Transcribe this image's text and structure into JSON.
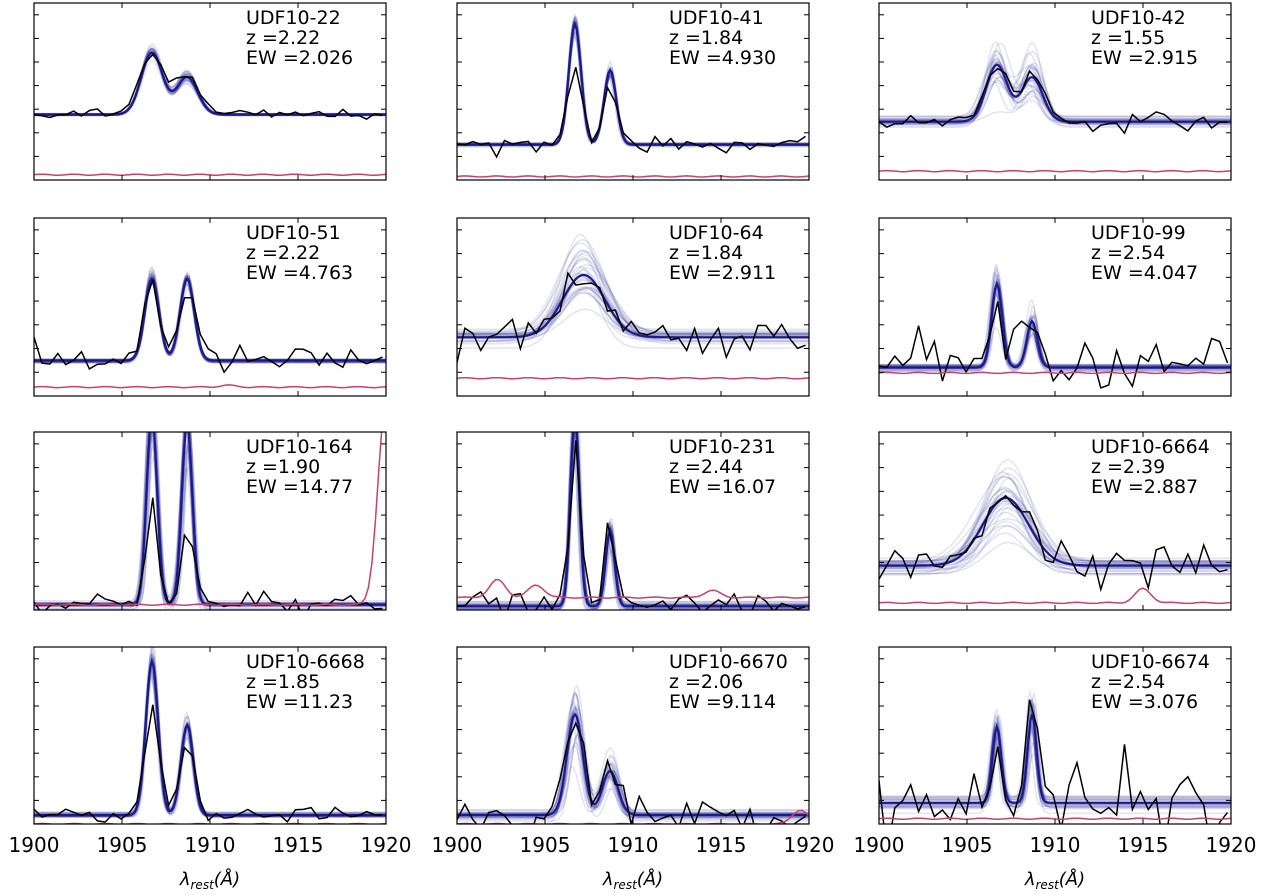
{
  "chart_data": {
    "type": "line",
    "layout": "4x3 grid of spectral panels",
    "x_axis": {
      "range": [
        1900,
        1920
      ],
      "ticks": [
        1900,
        1905,
        1910,
        1915,
        1920
      ],
      "tick_labels": [
        "1900",
        "1905",
        "1910",
        "1915",
        "1920"
      ],
      "label_main": "λ",
      "label_sub": "rest",
      "label_suffix": "(Å)"
    },
    "y_axis": {
      "tick_labels_shown": false
    },
    "colors": {
      "model": "#1a1a8c",
      "data": "#000000",
      "noise": "#c8406e"
    },
    "panels": [
      {
        "name": "UDF10-22",
        "z": "z =2.22",
        "ew": "EW =2.026",
        "type": "broad-doublet",
        "baseline": 0.37,
        "peak1": 0.72,
        "peak2": 0.58,
        "width": 0.6,
        "noise_level": 0.03,
        "data_noise": 0.015,
        "model_scatter": 0.01,
        "noise_bumps": []
      },
      {
        "name": "UDF10-41",
        "z": "z =1.84",
        "ew": "EW =4.930",
        "type": "narrow-doublet",
        "baseline": 0.2,
        "peak1": 0.88,
        "peak2": 0.62,
        "data_peak1": 0.65,
        "data_peak2": 0.55,
        "width": 0.35,
        "noise_level": 0.02,
        "data_noise": 0.02,
        "model_scatter": 0.015,
        "noise_bumps": []
      },
      {
        "name": "UDF10-42",
        "z": "z =1.55",
        "ew": "EW =2.915",
        "type": "wide-doublet",
        "baseline": 0.33,
        "peak1": 0.65,
        "peak2": 0.58,
        "width": 0.6,
        "noise_level": 0.05,
        "data_noise": 0.025,
        "model_scatter": 0.04,
        "noise_bumps": []
      },
      {
        "name": "UDF10-51",
        "z": "z =2.22",
        "ew": "EW =4.763",
        "type": "narrow-doublet",
        "baseline": 0.2,
        "peak1": 0.66,
        "peak2": 0.66,
        "data_peak1": 0.65,
        "data_peak2": 0.6,
        "width": 0.4,
        "noise_level": 0.05,
        "data_noise": 0.04,
        "model_scatter": 0.015,
        "noise_bumps": [
          [
            1911,
            0.01
          ]
        ]
      },
      {
        "name": "UDF10-64",
        "z": "z =1.84",
        "ew": "EW =2.911",
        "type": "broad-single",
        "baseline": 0.33,
        "peak1": 0.68,
        "peak2": 0.5,
        "width": 1.2,
        "noise_level": 0.1,
        "data_noise": 0.05,
        "model_scatter": 0.06,
        "noise_bumps": []
      },
      {
        "name": "UDF10-99",
        "z": "z =2.54",
        "ew": "EW =4.047",
        "type": "narrow-doublet",
        "baseline": 0.16,
        "peak1": 0.63,
        "peak2": 0.42,
        "data_peak1": 0.63,
        "data_peak2": 0.42,
        "width": 0.3,
        "noise_level": 0.13,
        "data_noise": 0.1,
        "model_scatter": 0.03,
        "noise_bumps": []
      },
      {
        "name": "UDF10-164",
        "z": "z =1.90",
        "ew": "EW =14.77",
        "type": "narrow-doublet",
        "baseline": 0.03,
        "peak1": 1.1,
        "peak2": 1.05,
        "data_peak1": 0.63,
        "data_peak2": 0.53,
        "width": 0.3,
        "noise_level": 0.03,
        "data_noise": 0.04,
        "model_scatter": 0.04,
        "noise_bumps": [
          [
            1920,
            1.15
          ]
        ]
      },
      {
        "name": "UDF10-231",
        "z": "z =2.44",
        "ew": "EW =16.07",
        "type": "narrow-doublet",
        "baseline": 0.02,
        "peak1": 1.1,
        "peak2": 0.45,
        "data_peak1": 1.0,
        "data_peak2": 0.45,
        "width": 0.25,
        "noise_level": 0.07,
        "data_noise": 0.04,
        "model_scatter": 0.03,
        "noise_bumps": [
          [
            1902.3,
            0.1
          ],
          [
            1904.5,
            0.07
          ],
          [
            1914.5,
            0.04
          ]
        ]
      },
      {
        "name": "UDF10-6664",
        "z": "z =2.39",
        "ew": "EW =2.887",
        "type": "broad-single",
        "baseline": 0.25,
        "peak1": 0.63,
        "peak2": 0.55,
        "width": 1.3,
        "noise_level": 0.04,
        "data_noise": 0.06,
        "model_scatter": 0.06,
        "noise_bumps": [
          [
            1915,
            0.08
          ]
        ]
      },
      {
        "name": "UDF10-6668",
        "z": "z =1.85",
        "ew": "EW =11.23",
        "type": "narrow-doublet",
        "baseline": 0.05,
        "peak1": 0.92,
        "peak2": 0.56,
        "data_peak1": 0.66,
        "data_peak2": 0.47,
        "width": 0.35,
        "noise_level": 0.0,
        "data_noise": 0.02,
        "model_scatter": 0.02,
        "noise_bumps": []
      },
      {
        "name": "UDF10-6670",
        "z": "z =2.06",
        "ew": "EW =9.114",
        "type": "narrow-doublet",
        "baseline": 0.05,
        "peak1": 0.62,
        "peak2": 0.3,
        "data_peak1": 0.6,
        "data_peak2": 0.3,
        "width": 0.45,
        "noise_level": 0.0,
        "data_noise": 0.05,
        "model_scatter": 0.05,
        "noise_bumps": [
          [
            1919.5,
            0.08
          ]
        ]
      },
      {
        "name": "UDF10-6674",
        "z": "z =2.54",
        "ew": "EW =3.076",
        "type": "narrow-doublet",
        "baseline": 0.12,
        "peak1": 0.55,
        "peak2": 0.62,
        "data_peak1": 0.48,
        "data_peak2": 0.57,
        "width": 0.25,
        "noise_level": 0.03,
        "data_noise": 0.12,
        "model_scatter": 0.04,
        "noise_bumps": []
      }
    ]
  }
}
